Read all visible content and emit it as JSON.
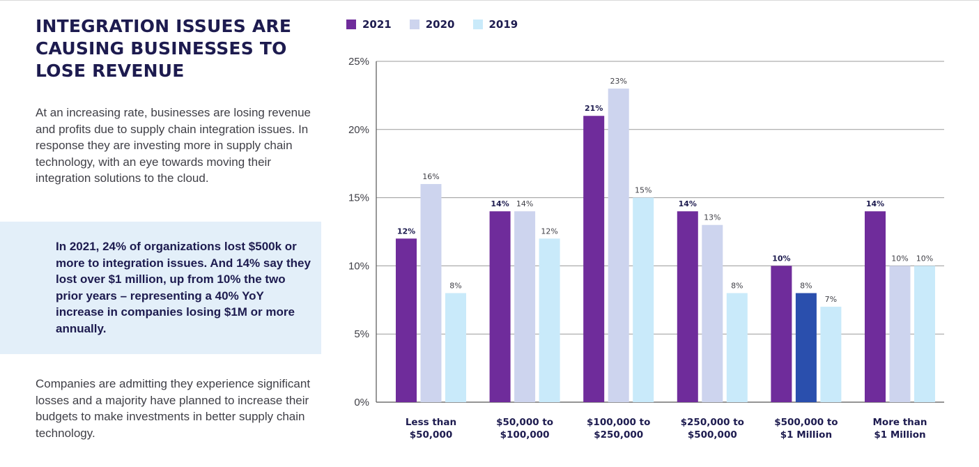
{
  "page": {
    "title_lines": [
      "INTEGRATION ISSUES ARE",
      "CAUSING BUSINESSES TO",
      "LOSE REVENUE"
    ],
    "intro": "At an increasing rate, businesses are losing revenue and profits due to supply chain integration issues. In response they are investing more in supply chain technology, with an eye towards moving their integration solutions to the cloud.",
    "callout": "In 2021, 24% of organizations lost $500k or more to integration issues. And 14% say they lost over $1 million, up from 10% the two prior years – representing a 40% YoY increase in companies losing $1M or more annually.",
    "closing": "Companies are admitting they experience significant losses and a majority have planned to increase their budgets to make investments in better supply chain technology."
  },
  "chart_data": {
    "type": "bar",
    "title": "",
    "xlabel": "",
    "ylabel": "",
    "categories": [
      [
        "Less than",
        "$50,000"
      ],
      [
        "$50,000 to",
        "$100,000"
      ],
      [
        "$100,000 to",
        "$250,000"
      ],
      [
        "$250,000 to",
        "$500,000"
      ],
      [
        "$500,000 to",
        "$1 Million"
      ],
      [
        "More than",
        "$1 Million"
      ]
    ],
    "series": [
      {
        "name": "2021",
        "color": "#6f2c9b",
        "values": [
          12,
          14,
          21,
          14,
          10,
          14
        ],
        "labels": [
          "12%",
          "14%",
          "21%",
          "14%",
          "10%",
          "14%"
        ],
        "label_weight": "bold"
      },
      {
        "name": "2020",
        "color": "#cdd4ee",
        "values": [
          16,
          14,
          23,
          13,
          8,
          10
        ],
        "labels": [
          "16%",
          "14%",
          "23%",
          "13%",
          "8%",
          "10%"
        ],
        "label_weight": "normal",
        "point_colors": {
          "4": "#2a4fad"
        }
      },
      {
        "name": "2019",
        "color": "#c9eafa",
        "values": [
          8,
          12,
          15,
          8,
          7,
          10
        ],
        "labels": [
          "8%",
          "12%",
          "15%",
          "8%",
          "7%",
          "10%"
        ],
        "label_weight": "normal"
      }
    ],
    "ylim": [
      0,
      25
    ],
    "yticks": [
      0,
      5,
      10,
      15,
      20,
      25
    ],
    "ytick_labels": [
      "0%",
      "5%",
      "10%",
      "15%",
      "20%",
      "25%"
    ],
    "grid": true,
    "legend_position": "top-left"
  }
}
